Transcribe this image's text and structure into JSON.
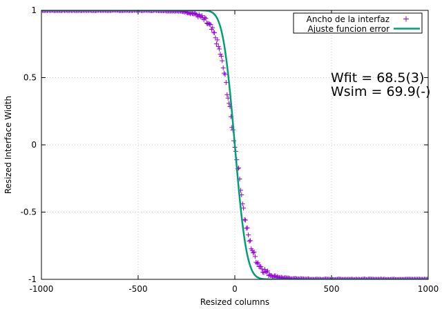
{
  "chart_data": {
    "type": "scatter",
    "xlabel": "Resized columns",
    "ylabel": "Resized Interface Width",
    "xlim": [
      -1000,
      1000
    ],
    "ylim": [
      -1,
      1
    ],
    "x_ticks": [
      -1000,
      -500,
      0,
      500,
      1000
    ],
    "x_tick_labels": [
      "-1000",
      "-500",
      "0",
      "500",
      "1000"
    ],
    "y_ticks": [
      -1,
      -0.5,
      0,
      0.5,
      1
    ],
    "y_tick_labels": [
      "-1",
      "-0.5",
      "0",
      "0.5",
      "1"
    ],
    "grid": true,
    "legend_position": "top-right",
    "series": [
      {
        "name": "Ancho de la interfaz",
        "kind": "points",
        "marker": "plus",
        "color": "#9400d3",
        "x": [
          -1000,
          -900,
          -800,
          -700,
          -600,
          -500,
          -400,
          -300,
          -250,
          -200,
          -175,
          -150,
          -125,
          -100,
          -75,
          -50,
          -40,
          -30,
          -20,
          -10,
          0,
          10,
          20,
          30,
          40,
          50,
          75,
          100,
          125,
          150,
          175,
          200,
          250,
          300,
          400,
          500,
          600,
          700,
          800,
          900,
          1000
        ],
        "y": [
          1,
          1,
          1,
          1,
          1,
          1,
          1,
          0.995,
          0.99,
          0.97,
          0.95,
          0.92,
          0.87,
          0.8,
          0.68,
          0.5,
          0.4,
          0.31,
          0.2,
          0.1,
          0,
          -0.1,
          -0.2,
          -0.31,
          -0.42,
          -0.54,
          -0.71,
          -0.82,
          -0.89,
          -0.93,
          -0.96,
          -0.975,
          -0.99,
          -0.995,
          -1,
          -1,
          -1,
          -1,
          -1,
          -1,
          -1
        ]
      },
      {
        "name": "Ajuste funcion error",
        "kind": "line",
        "color": "#009e73",
        "function": "-erf(x / w)",
        "w": 68.5
      }
    ],
    "annotations": [
      "Wfit = 68.5(3)",
      "Wsim = 69.9(-)"
    ]
  }
}
